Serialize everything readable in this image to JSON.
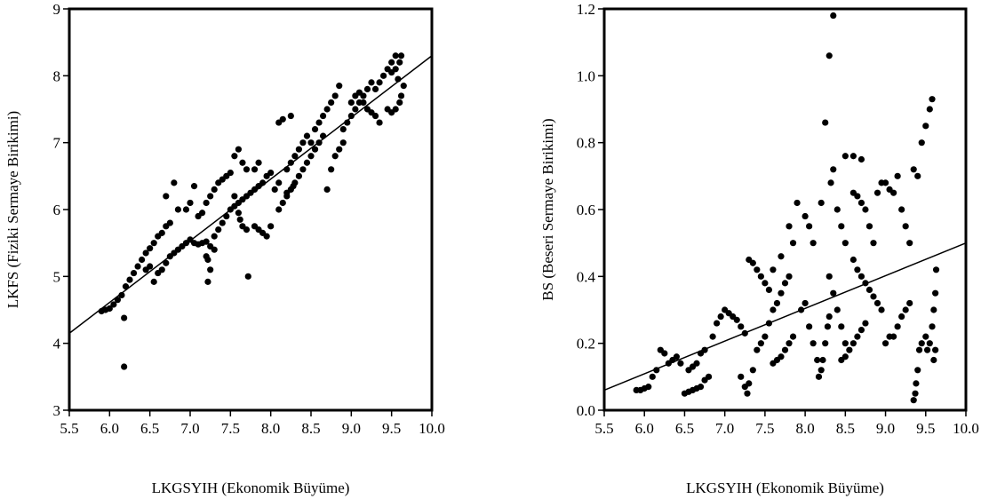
{
  "chart_data": [
    {
      "type": "scatter",
      "title": "",
      "xlabel": "LKGSYIH (Ekonomik Büyüme)",
      "ylabel": "LKFS (Fiziki Sermaye Birikimi)",
      "xlim": [
        5.5,
        10.0
      ],
      "ylim": [
        3,
        9
      ],
      "xticks": [
        "5.5",
        "6.0",
        "6.5",
        "7.0",
        "7.5",
        "8.0",
        "8.5",
        "9.0",
        "9.5",
        "10.0"
      ],
      "yticks": [
        "3",
        "4",
        "5",
        "6",
        "7",
        "8",
        "9"
      ],
      "grid": false,
      "legend": "none",
      "point_color": "#000000",
      "fit_line": {
        "x": [
          5.5,
          10.0
        ],
        "y": [
          4.15,
          8.3
        ]
      },
      "points": [
        [
          5.9,
          4.48
        ],
        [
          5.95,
          4.5
        ],
        [
          6.0,
          4.52
        ],
        [
          6.05,
          4.58
        ],
        [
          6.1,
          4.65
        ],
        [
          6.15,
          4.72
        ],
        [
          6.2,
          4.85
        ],
        [
          6.18,
          4.38
        ],
        [
          6.18,
          3.65
        ],
        [
          6.25,
          4.95
        ],
        [
          6.3,
          5.05
        ],
        [
          6.35,
          5.15
        ],
        [
          6.4,
          5.25
        ],
        [
          6.45,
          5.35
        ],
        [
          6.5,
          5.42
        ],
        [
          6.55,
          5.5
        ],
        [
          6.6,
          5.6
        ],
        [
          6.65,
          5.65
        ],
        [
          6.7,
          5.75
        ],
        [
          6.75,
          5.8
        ],
        [
          6.8,
          6.4
        ],
        [
          6.85,
          6.0
        ],
        [
          6.7,
          6.2
        ],
        [
          6.45,
          5.1
        ],
        [
          6.5,
          5.15
        ],
        [
          6.55,
          4.92
        ],
        [
          6.6,
          5.05
        ],
        [
          6.65,
          5.1
        ],
        [
          6.7,
          5.2
        ],
        [
          6.75,
          5.3
        ],
        [
          6.8,
          5.35
        ],
        [
          6.85,
          5.4
        ],
        [
          6.9,
          5.45
        ],
        [
          6.95,
          5.5
        ],
        [
          7.0,
          5.55
        ],
        [
          7.05,
          5.5
        ],
        [
          7.1,
          5.48
        ],
        [
          7.15,
          5.5
        ],
        [
          7.2,
          5.52
        ],
        [
          7.25,
          5.45
        ],
        [
          7.3,
          5.4
        ],
        [
          7.2,
          5.3
        ],
        [
          7.22,
          5.25
        ],
        [
          7.25,
          5.1
        ],
        [
          7.22,
          4.92
        ],
        [
          7.0,
          6.1
        ],
        [
          7.05,
          6.35
        ],
        [
          6.95,
          6.0
        ],
        [
          7.1,
          5.9
        ],
        [
          7.15,
          5.95
        ],
        [
          7.2,
          6.1
        ],
        [
          7.25,
          6.2
        ],
        [
          7.3,
          6.3
        ],
        [
          7.35,
          6.4
        ],
        [
          7.4,
          6.45
        ],
        [
          7.45,
          6.5
        ],
        [
          7.5,
          6.55
        ],
        [
          7.3,
          5.6
        ],
        [
          7.35,
          5.7
        ],
        [
          7.4,
          5.8
        ],
        [
          7.45,
          5.9
        ],
        [
          7.5,
          6.0
        ],
        [
          7.55,
          6.05
        ],
        [
          7.6,
          6.1
        ],
        [
          7.65,
          6.15
        ],
        [
          7.7,
          6.2
        ],
        [
          7.75,
          6.25
        ],
        [
          7.8,
          6.3
        ],
        [
          7.85,
          6.35
        ],
        [
          7.55,
          6.8
        ],
        [
          7.6,
          6.9
        ],
        [
          7.65,
          6.7
        ],
        [
          7.7,
          6.6
        ],
        [
          7.55,
          6.2
        ],
        [
          7.6,
          5.95
        ],
        [
          7.62,
          5.85
        ],
        [
          7.65,
          5.75
        ],
        [
          7.7,
          5.7
        ],
        [
          7.72,
          5.0
        ],
        [
          7.8,
          5.75
        ],
        [
          7.85,
          5.7
        ],
        [
          7.9,
          5.65
        ],
        [
          7.95,
          5.6
        ],
        [
          8.0,
          5.75
        ],
        [
          7.9,
          6.4
        ],
        [
          7.95,
          6.5
        ],
        [
          8.0,
          6.55
        ],
        [
          8.05,
          6.3
        ],
        [
          8.1,
          6.4
        ],
        [
          7.8,
          6.6
        ],
        [
          7.85,
          6.7
        ],
        [
          8.1,
          6.0
        ],
        [
          8.15,
          6.1
        ],
        [
          8.2,
          6.2
        ],
        [
          8.25,
          6.3
        ],
        [
          8.3,
          6.4
        ],
        [
          8.2,
          6.6
        ],
        [
          8.25,
          6.7
        ],
        [
          8.3,
          6.8
        ],
        [
          8.35,
          6.9
        ],
        [
          8.4,
          7.0
        ],
        [
          8.45,
          7.1
        ],
        [
          8.5,
          7.0
        ],
        [
          8.1,
          7.3
        ],
        [
          8.15,
          7.35
        ],
        [
          8.25,
          7.4
        ],
        [
          8.2,
          6.25
        ],
        [
          8.28,
          6.35
        ],
        [
          8.35,
          6.5
        ],
        [
          8.4,
          6.6
        ],
        [
          8.45,
          6.7
        ],
        [
          8.5,
          6.8
        ],
        [
          8.55,
          6.9
        ],
        [
          8.6,
          7.0
        ],
        [
          8.65,
          7.1
        ],
        [
          8.55,
          7.2
        ],
        [
          8.6,
          7.3
        ],
        [
          8.65,
          7.4
        ],
        [
          8.7,
          7.5
        ],
        [
          8.75,
          7.6
        ],
        [
          8.8,
          7.7
        ],
        [
          8.85,
          7.85
        ],
        [
          8.7,
          6.3
        ],
        [
          8.75,
          6.6
        ],
        [
          8.8,
          6.8
        ],
        [
          8.85,
          6.9
        ],
        [
          8.9,
          7.0
        ],
        [
          8.9,
          7.2
        ],
        [
          8.95,
          7.3
        ],
        [
          9.0,
          7.4
        ],
        [
          9.05,
          7.5
        ],
        [
          9.1,
          7.6
        ],
        [
          9.15,
          7.7
        ],
        [
          9.2,
          7.8
        ],
        [
          9.25,
          7.9
        ],
        [
          9.0,
          7.6
        ],
        [
          9.05,
          7.7
        ],
        [
          9.1,
          7.75
        ],
        [
          9.15,
          7.6
        ],
        [
          9.2,
          7.5
        ],
        [
          9.25,
          7.45
        ],
        [
          9.3,
          7.4
        ],
        [
          9.35,
          7.3
        ],
        [
          9.3,
          7.8
        ],
        [
          9.35,
          7.9
        ],
        [
          9.4,
          8.0
        ],
        [
          9.45,
          8.1
        ],
        [
          9.5,
          8.2
        ],
        [
          9.55,
          8.3
        ],
        [
          9.5,
          8.05
        ],
        [
          9.45,
          7.5
        ],
        [
          9.5,
          7.45
        ],
        [
          9.55,
          7.5
        ],
        [
          9.6,
          7.6
        ],
        [
          9.62,
          7.7
        ],
        [
          9.65,
          7.85
        ],
        [
          9.55,
          8.1
        ],
        [
          9.6,
          8.2
        ],
        [
          9.62,
          8.3
        ],
        [
          9.58,
          7.95
        ]
      ]
    },
    {
      "type": "scatter",
      "title": "",
      "xlabel": "LKGSYIH (Ekonomik Büyüme)",
      "ylabel": "BS (Beseri Sermaye Birikimi)",
      "xlim": [
        5.5,
        10.0
      ],
      "ylim": [
        0.0,
        1.2
      ],
      "xticks": [
        "5.5",
        "6.0",
        "6.5",
        "7.0",
        "7.5",
        "8.0",
        "8.5",
        "9.0",
        "9.5",
        "10.0"
      ],
      "yticks": [
        "0.0",
        "0.2",
        "0.4",
        "0.6",
        "0.8",
        "1.0",
        "1.2"
      ],
      "grid": false,
      "legend": "none",
      "point_color": "#000000",
      "fit_line": {
        "x": [
          5.5,
          10.0
        ],
        "y": [
          0.06,
          0.5
        ]
      },
      "points": [
        [
          5.9,
          0.06
        ],
        [
          5.95,
          0.06
        ],
        [
          6.0,
          0.065
        ],
        [
          6.05,
          0.07
        ],
        [
          6.1,
          0.1
        ],
        [
          6.15,
          0.12
        ],
        [
          6.2,
          0.18
        ],
        [
          6.25,
          0.17
        ],
        [
          6.3,
          0.14
        ],
        [
          6.35,
          0.15
        ],
        [
          6.4,
          0.16
        ],
        [
          6.45,
          0.14
        ],
        [
          6.5,
          0.05
        ],
        [
          6.55,
          0.055
        ],
        [
          6.6,
          0.06
        ],
        [
          6.65,
          0.065
        ],
        [
          6.7,
          0.07
        ],
        [
          6.75,
          0.09
        ],
        [
          6.8,
          0.1
        ],
        [
          6.55,
          0.12
        ],
        [
          6.6,
          0.13
        ],
        [
          6.65,
          0.14
        ],
        [
          6.7,
          0.17
        ],
        [
          6.75,
          0.18
        ],
        [
          6.85,
          0.22
        ],
        [
          6.9,
          0.26
        ],
        [
          6.95,
          0.28
        ],
        [
          7.0,
          0.3
        ],
        [
          7.05,
          0.29
        ],
        [
          7.1,
          0.28
        ],
        [
          7.15,
          0.27
        ],
        [
          7.2,
          0.25
        ],
        [
          7.25,
          0.23
        ],
        [
          7.2,
          0.1
        ],
        [
          7.25,
          0.07
        ],
        [
          7.28,
          0.05
        ],
        [
          7.3,
          0.08
        ],
        [
          7.35,
          0.12
        ],
        [
          7.3,
          0.45
        ],
        [
          7.35,
          0.44
        ],
        [
          7.4,
          0.42
        ],
        [
          7.45,
          0.4
        ],
        [
          7.5,
          0.38
        ],
        [
          7.55,
          0.36
        ],
        [
          7.4,
          0.18
        ],
        [
          7.45,
          0.2
        ],
        [
          7.5,
          0.22
        ],
        [
          7.55,
          0.26
        ],
        [
          7.6,
          0.3
        ],
        [
          7.65,
          0.32
        ],
        [
          7.7,
          0.35
        ],
        [
          7.75,
          0.38
        ],
        [
          7.8,
          0.4
        ],
        [
          7.6,
          0.14
        ],
        [
          7.65,
          0.15
        ],
        [
          7.7,
          0.16
        ],
        [
          7.75,
          0.18
        ],
        [
          7.8,
          0.2
        ],
        [
          7.85,
          0.22
        ],
        [
          7.6,
          0.42
        ],
        [
          7.7,
          0.46
        ],
        [
          7.8,
          0.55
        ],
        [
          7.85,
          0.5
        ],
        [
          7.9,
          0.62
        ],
        [
          7.95,
          0.3
        ],
        [
          8.0,
          0.32
        ],
        [
          8.0,
          0.58
        ],
        [
          8.05,
          0.55
        ],
        [
          8.1,
          0.5
        ],
        [
          8.05,
          0.25
        ],
        [
          8.1,
          0.2
        ],
        [
          8.15,
          0.15
        ],
        [
          8.17,
          0.1
        ],
        [
          8.2,
          0.12
        ],
        [
          8.22,
          0.15
        ],
        [
          8.25,
          0.2
        ],
        [
          8.28,
          0.25
        ],
        [
          8.3,
          0.28
        ],
        [
          8.2,
          0.62
        ],
        [
          8.25,
          0.86
        ],
        [
          8.3,
          1.06
        ],
        [
          8.35,
          1.18
        ],
        [
          8.32,
          0.68
        ],
        [
          8.35,
          0.72
        ],
        [
          8.4,
          0.6
        ],
        [
          8.45,
          0.55
        ],
        [
          8.5,
          0.5
        ],
        [
          8.3,
          0.4
        ],
        [
          8.35,
          0.35
        ],
        [
          8.4,
          0.3
        ],
        [
          8.45,
          0.25
        ],
        [
          8.5,
          0.2
        ],
        [
          8.45,
          0.15
        ],
        [
          8.5,
          0.16
        ],
        [
          8.55,
          0.18
        ],
        [
          8.6,
          0.2
        ],
        [
          8.65,
          0.22
        ],
        [
          8.7,
          0.24
        ],
        [
          8.75,
          0.26
        ],
        [
          8.5,
          0.76
        ],
        [
          8.6,
          0.76
        ],
        [
          8.7,
          0.75
        ],
        [
          8.6,
          0.65
        ],
        [
          8.65,
          0.64
        ],
        [
          8.7,
          0.62
        ],
        [
          8.75,
          0.6
        ],
        [
          8.8,
          0.55
        ],
        [
          8.85,
          0.5
        ],
        [
          8.6,
          0.45
        ],
        [
          8.65,
          0.42
        ],
        [
          8.7,
          0.4
        ],
        [
          8.75,
          0.38
        ],
        [
          8.8,
          0.36
        ],
        [
          8.85,
          0.34
        ],
        [
          8.9,
          0.32
        ],
        [
          8.95,
          0.3
        ],
        [
          8.9,
          0.65
        ],
        [
          8.95,
          0.68
        ],
        [
          9.0,
          0.68
        ],
        [
          9.05,
          0.66
        ],
        [
          9.1,
          0.65
        ],
        [
          9.15,
          0.7
        ],
        [
          9.2,
          0.6
        ],
        [
          9.25,
          0.55
        ],
        [
          9.3,
          0.5
        ],
        [
          9.35,
          0.72
        ],
        [
          9.4,
          0.7
        ],
        [
          9.45,
          0.8
        ],
        [
          9.5,
          0.85
        ],
        [
          9.55,
          0.9
        ],
        [
          9.58,
          0.93
        ],
        [
          9.0,
          0.2
        ],
        [
          9.05,
          0.22
        ],
        [
          9.1,
          0.22
        ],
        [
          9.15,
          0.25
        ],
        [
          9.2,
          0.28
        ],
        [
          9.25,
          0.3
        ],
        [
          9.3,
          0.32
        ],
        [
          9.35,
          0.03
        ],
        [
          9.37,
          0.05
        ],
        [
          9.38,
          0.08
        ],
        [
          9.4,
          0.12
        ],
        [
          9.42,
          0.18
        ],
        [
          9.45,
          0.2
        ],
        [
          9.5,
          0.22
        ],
        [
          9.52,
          0.18
        ],
        [
          9.55,
          0.2
        ],
        [
          9.58,
          0.25
        ],
        [
          9.6,
          0.3
        ],
        [
          9.62,
          0.35
        ],
        [
          9.6,
          0.15
        ],
        [
          9.62,
          0.18
        ],
        [
          9.63,
          0.42
        ]
      ]
    }
  ]
}
